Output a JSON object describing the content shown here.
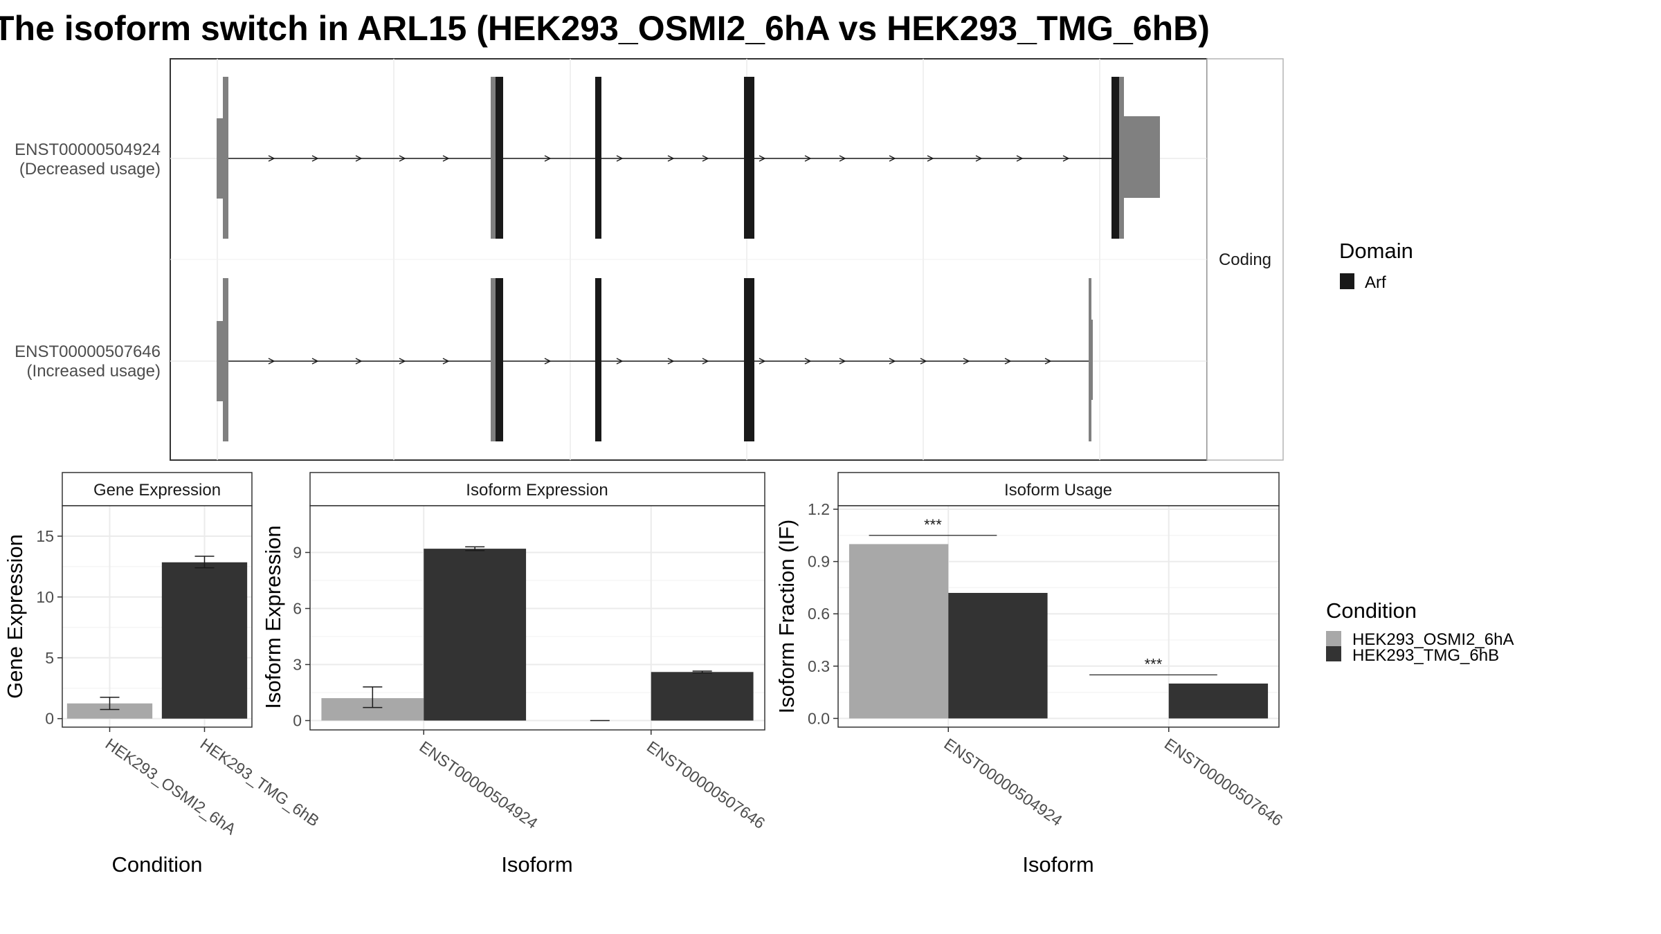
{
  "title": "The isoform switch in ARL15 (HEK293_OSMI2_6hA vs HEK293_TMG_6hB)",
  "colors": {
    "exon_noncoding": "#808080",
    "domain_arf": "#191919",
    "condition_a": "#a8a8a8",
    "condition_b": "#333333",
    "panel_border": "#333333",
    "grid": "#ebebeb",
    "strip_fill": "#ffffff",
    "text_dark": "#1a1a1a",
    "text_axis": "#4d4d4d"
  },
  "transcript_panel": {
    "facet_label": "Coding",
    "transcripts": [
      {
        "id": "ENST00000504924",
        "label_line1": "ENST00000504924",
        "label_line2": "(Decreased usage)"
      },
      {
        "id": "ENST00000507646",
        "label_line1": "ENST00000507646",
        "label_line2": "(Increased usage)"
      }
    ]
  },
  "domain_legend": {
    "title": "Domain",
    "items": [
      {
        "label": "Arf",
        "color": "#191919"
      }
    ]
  },
  "condition_legend": {
    "title": "Condition",
    "items": [
      {
        "label": "HEK293_OSMI2_6hA",
        "color": "#a8a8a8"
      },
      {
        "label": "HEK293_TMG_6hB",
        "color": "#333333"
      }
    ]
  },
  "chart_data": [
    {
      "type": "bar",
      "strip": "Gene Expression",
      "xlabel": "Condition",
      "ylabel": "Gene Expression",
      "ylim": [
        -0.7,
        17.5
      ],
      "yticks": [
        0,
        5,
        10,
        15
      ],
      "categories": [
        "HEK293_OSMI2_6hA",
        "HEK293_TMG_6hB"
      ],
      "values": [
        1.25,
        12.85
      ],
      "error_low": [
        0.75,
        12.4
      ],
      "error_high": [
        1.75,
        13.35
      ]
    },
    {
      "type": "bar",
      "strip": "Isoform Expression",
      "xlabel": "Isoform",
      "ylabel": "Isoform Expression",
      "ylim": [
        -0.5,
        11.5
      ],
      "yticks": [
        0,
        3,
        6,
        9
      ],
      "categories": [
        "ENST00000504924",
        "ENST00000507646"
      ],
      "series": [
        {
          "name": "HEK293_OSMI2_6hA",
          "values": [
            1.2,
            0.0
          ],
          "error_low": [
            0.7,
            0.0
          ],
          "error_high": [
            1.8,
            0.0
          ]
        },
        {
          "name": "HEK293_TMG_6hB",
          "values": [
            9.2,
            2.6
          ],
          "error_low": [
            9.1,
            2.55
          ],
          "error_high": [
            9.3,
            2.65
          ]
        }
      ]
    },
    {
      "type": "bar",
      "strip": "Isoform Usage",
      "xlabel": "Isoform",
      "ylabel": "Isoform Fraction (IF)",
      "ylim": [
        -0.05,
        1.22
      ],
      "yticks": [
        "0.0",
        "0.3",
        "0.6",
        "0.9",
        "1.2"
      ],
      "categories": [
        "ENST00000504924",
        "ENST00000507646"
      ],
      "series": [
        {
          "name": "HEK293_OSMI2_6hA",
          "values": [
            1.0,
            0.0
          ]
        },
        {
          "name": "HEK293_TMG_6hB",
          "values": [
            0.72,
            0.2
          ]
        }
      ],
      "significance": [
        {
          "category": "ENST00000504924",
          "label": "***",
          "y": 1.05
        },
        {
          "category": "ENST00000507646",
          "label": "***",
          "y": 0.25
        }
      ]
    }
  ]
}
